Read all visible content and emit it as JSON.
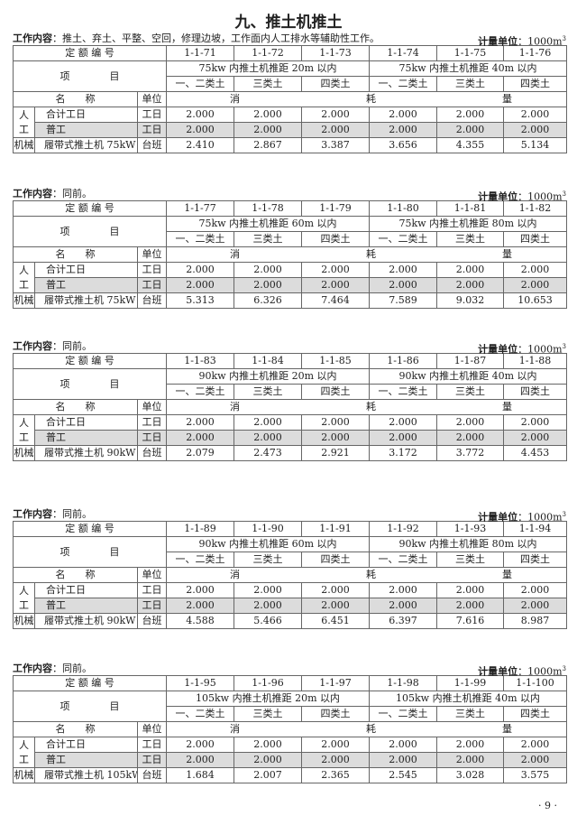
{
  "title": "九、推土机推土",
  "work_content_label": "工作内容",
  "unit_label": "计量单位",
  "header_labels": {
    "code": "定 额 编 号",
    "item": "项　　　　目",
    "name": "名　　称",
    "unit_col": "单位",
    "consumption": [
      "消",
      "耗",
      "量"
    ],
    "labor_group": "人工",
    "machine_group": "机械"
  },
  "soil_types": [
    "一、二类土",
    "三类土",
    "四类土"
  ],
  "row_labels": {
    "total": "合计工日",
    "general": "普工",
    "labor_unit": "工日",
    "machine_unit": "台班"
  },
  "page_number": "· 9 ·",
  "tables": [
    {
      "work_content": "：推土、弃土、平整、空回，修理边坡，工作面内人工排水等辅助性工作。",
      "unit": "：1000m",
      "unit_sup": "3",
      "codes": [
        "1-1-71",
        "1-1-72",
        "1-1-73",
        "1-1-74",
        "1-1-75",
        "1-1-76"
      ],
      "groups": [
        "75kw 内推土机推距 20m 以内",
        "75kw 内推土机推距 40m 以内"
      ],
      "total": [
        "2.000",
        "2.000",
        "2.000",
        "2.000",
        "2.000",
        "2.000"
      ],
      "general": [
        "2.000",
        "2.000",
        "2.000",
        "2.000",
        "2.000",
        "2.000"
      ],
      "machine_name": "履带式推土机 75kW",
      "machine": [
        "2.410",
        "2.867",
        "3.387",
        "3.656",
        "4.355",
        "5.134"
      ]
    },
    {
      "work_content": "：同前。",
      "unit": "：1000m",
      "unit_sup": "3",
      "codes": [
        "1-1-77",
        "1-1-78",
        "1-1-79",
        "1-1-80",
        "1-1-81",
        "1-1-82"
      ],
      "groups": [
        "75kw 内推土机推距 60m 以内",
        "75kw 内推土机推距 80m 以内"
      ],
      "total": [
        "2.000",
        "2.000",
        "2.000",
        "2.000",
        "2.000",
        "2.000"
      ],
      "general": [
        "2.000",
        "2.000",
        "2.000",
        "2.000",
        "2.000",
        "2.000"
      ],
      "machine_name": "履带式推土机 75kW",
      "machine": [
        "5.313",
        "6.326",
        "7.464",
        "7.589",
        "9.032",
        "10.653"
      ]
    },
    {
      "work_content": "：同前。",
      "unit": "：1000m",
      "unit_sup": "3",
      "codes": [
        "1-1-83",
        "1-1-84",
        "1-1-85",
        "1-1-86",
        "1-1-87",
        "1-1-88"
      ],
      "groups": [
        "90kw 内推土机推距 20m 以内",
        "90kw 内推土机推距 40m 以内"
      ],
      "total": [
        "2.000",
        "2.000",
        "2.000",
        "2.000",
        "2.000",
        "2.000"
      ],
      "general": [
        "2.000",
        "2.000",
        "2.000",
        "2.000",
        "2.000",
        "2.000"
      ],
      "machine_name": "履带式推土机 90kW",
      "machine": [
        "2.079",
        "2.473",
        "2.921",
        "3.172",
        "3.772",
        "4.453"
      ]
    },
    {
      "work_content": "：同前。",
      "unit": "：1000m",
      "unit_sup": "3",
      "codes": [
        "1-1-89",
        "1-1-90",
        "1-1-91",
        "1-1-92",
        "1-1-93",
        "1-1-94"
      ],
      "groups": [
        "90kw 内推土机推距 60m 以内",
        "90kw 内推土机推距 80m 以内"
      ],
      "total": [
        "2.000",
        "2.000",
        "2.000",
        "2.000",
        "2.000",
        "2.000"
      ],
      "general": [
        "2.000",
        "2.000",
        "2.000",
        "2.000",
        "2.000",
        "2.000"
      ],
      "machine_name": "履带式推土机 90kW",
      "machine": [
        "4.588",
        "5.466",
        "6.451",
        "6.397",
        "7.616",
        "8.987"
      ]
    },
    {
      "work_content": "：同前。",
      "unit": "：1000m",
      "unit_sup": "3",
      "codes": [
        "1-1-95",
        "1-1-96",
        "1-1-97",
        "1-1-98",
        "1-1-99",
        "1-1-100"
      ],
      "groups": [
        "105kw 内推土机推距 20m 以内",
        "105kw 内推土机推距 40m 以内"
      ],
      "total": [
        "2.000",
        "2.000",
        "2.000",
        "2.000",
        "2.000",
        "2.000"
      ],
      "general": [
        "2.000",
        "2.000",
        "2.000",
        "2.000",
        "2.000",
        "2.000"
      ],
      "machine_name": "履带式推土机 105kW",
      "machine": [
        "1.684",
        "2.007",
        "2.365",
        "2.545",
        "3.028",
        "3.575"
      ]
    }
  ]
}
